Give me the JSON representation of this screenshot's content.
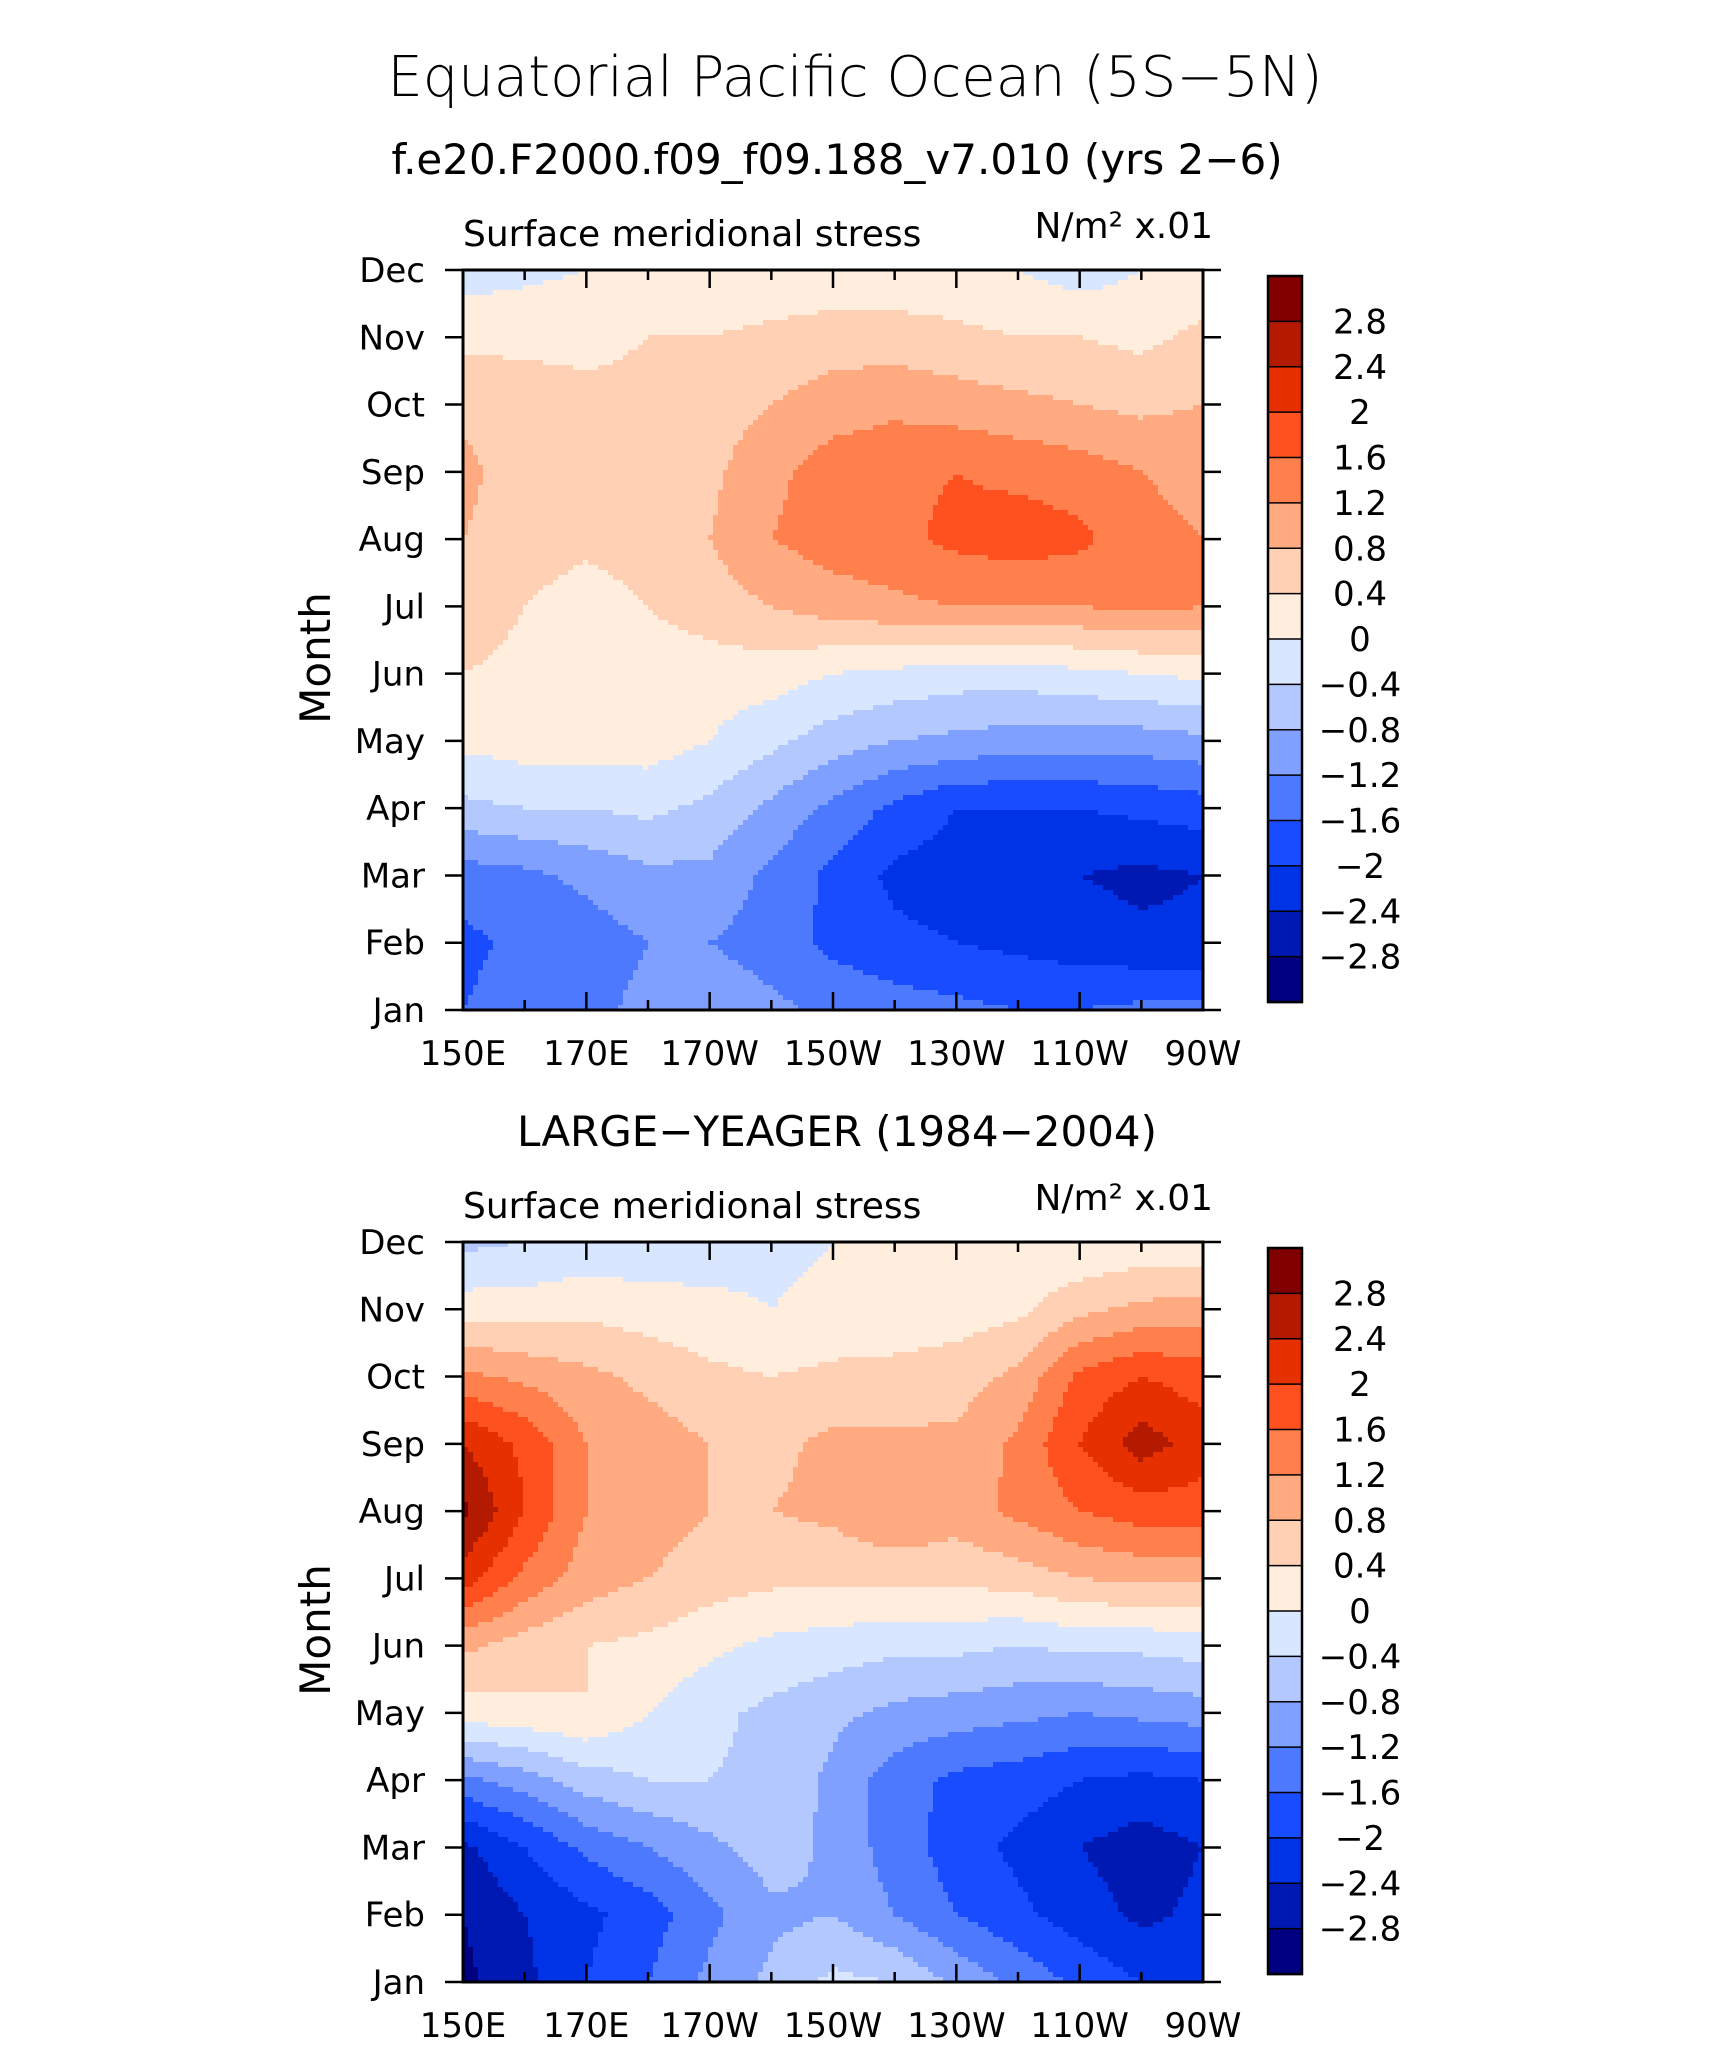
{
  "title": "Equatorial Pacific Ocean (5S−5N)",
  "colorbar": {
    "colors": [
      "#000080",
      "#0019b3",
      "#0033e6",
      "#1a4cff",
      "#4d79ff",
      "#80a0ff",
      "#b3c8ff",
      "#d9e6ff",
      "#ffeede",
      "#ffd0b3",
      "#ffaa80",
      "#ff7f4d",
      "#ff5020",
      "#e63000",
      "#b31a00",
      "#800000"
    ],
    "labels": [
      "2.8",
      "2.4",
      "2",
      "1.6",
      "1.2",
      "0.8",
      "0.4",
      "0",
      "−0.4",
      "−0.8",
      "−1.2",
      "−1.6",
      "−2",
      "−2.4",
      "−2.8"
    ]
  },
  "chart_data": [
    {
      "type": "heatmap",
      "title": "f.e20.F2000.f09_f09.188_v7.010 (yrs 2−6)",
      "left_string": "Surface meridional stress",
      "right_string": "N/m² x.01",
      "ylabel": "Month",
      "x_ticks": [
        "150E",
        "170E",
        "170W",
        "150W",
        "130W",
        "110W",
        "90W"
      ],
      "x_values": [
        150,
        160,
        170,
        180,
        190,
        200,
        210,
        220,
        230,
        240,
        250,
        260,
        270
      ],
      "y_ticks": [
        "Jan",
        "Feb",
        "Mar",
        "Apr",
        "May",
        "Jun",
        "Jul",
        "Aug",
        "Sep",
        "Oct",
        "Nov",
        "Dec"
      ],
      "levels": [
        -2.8,
        -2.4,
        -2.0,
        -1.6,
        -1.2,
        -0.8,
        -0.4,
        0,
        0.4,
        0.8,
        1.2,
        1.6,
        2.0,
        2.4,
        2.8
      ],
      "z": [
        [
          -1.6,
          -1.4,
          -1.3,
          -1.1,
          -0.9,
          -1.1,
          -1.3,
          -1.4,
          -1.5,
          -1.6,
          -1.6,
          -1.5,
          -1.5
        ],
        [
          -1.7,
          -1.5,
          -1.4,
          -1.2,
          -1.2,
          -1.4,
          -1.7,
          -1.9,
          -2.0,
          -2.1,
          -2.2,
          -2.3,
          -2.3
        ],
        [
          -1.4,
          -1.3,
          -1.1,
          -0.9,
          -0.9,
          -1.3,
          -1.7,
          -2.1,
          -2.2,
          -2.3,
          -2.4,
          -2.5,
          -2.4
        ],
        [
          -0.5,
          -0.4,
          -0.4,
          -0.3,
          -0.5,
          -0.9,
          -1.3,
          -1.7,
          -2.0,
          -2.0,
          -2.0,
          -1.9,
          -1.8
        ],
        [
          0.1,
          0.2,
          0.2,
          0.2,
          0.0,
          -0.3,
          -0.6,
          -0.8,
          -0.9,
          -1.0,
          -1.0,
          -1.0,
          -0.9
        ],
        [
          0.4,
          0.3,
          0.3,
          0.2,
          0.2,
          0.2,
          0.0,
          -0.1,
          -0.2,
          -0.2,
          -0.1,
          0.0,
          0.1
        ],
        [
          0.6,
          0.4,
          0.2,
          0.4,
          0.6,
          0.8,
          1.0,
          1.1,
          1.2,
          1.2,
          1.2,
          1.3,
          1.2
        ],
        [
          0.8,
          0.6,
          0.5,
          0.6,
          0.8,
          1.2,
          1.4,
          1.5,
          1.7,
          1.8,
          1.7,
          1.3,
          1.2
        ],
        [
          0.9,
          0.6,
          0.5,
          0.5,
          0.7,
          1.1,
          1.4,
          1.5,
          1.6,
          1.5,
          1.4,
          1.2,
          1.1
        ],
        [
          0.7,
          0.6,
          0.5,
          0.5,
          0.6,
          0.8,
          1.0,
          1.1,
          1.0,
          0.9,
          0.8,
          0.7,
          0.8
        ],
        [
          0.3,
          0.3,
          0.3,
          0.4,
          0.4,
          0.5,
          0.6,
          0.6,
          0.5,
          0.4,
          0.4,
          0.3,
          0.5
        ],
        [
          -0.2,
          -0.1,
          0.0,
          0.1,
          0.1,
          0.1,
          0.1,
          0.1,
          0.1,
          0.0,
          -0.2,
          0.0,
          0.1
        ]
      ]
    },
    {
      "type": "heatmap",
      "title": "LARGE−YEAGER (1984−2004)",
      "left_string": "Surface meridional stress",
      "right_string": "N/m² x.01",
      "ylabel": "Month",
      "x_ticks": [
        "150E",
        "170E",
        "170W",
        "150W",
        "130W",
        "110W",
        "90W"
      ],
      "x_values": [
        150,
        160,
        170,
        180,
        190,
        200,
        210,
        220,
        230,
        240,
        250,
        260,
        270
      ],
      "y_ticks": [
        "Jan",
        "Feb",
        "Mar",
        "Apr",
        "May",
        "Jun",
        "Jul",
        "Aug",
        "Sep",
        "Oct",
        "Nov",
        "Dec"
      ],
      "levels": [
        -2.8,
        -2.4,
        -2.0,
        -1.6,
        -1.2,
        -0.8,
        -0.4,
        0,
        0.4,
        0.8,
        1.2,
        1.6,
        2.0,
        2.4,
        2.8
      ],
      "z": [
        [
          -2.9,
          -2.5,
          -2.0,
          -1.6,
          -1.1,
          -0.7,
          -0.3,
          -0.4,
          -0.9,
          -1.3,
          -1.7,
          -2.0,
          -2.2
        ],
        [
          -2.8,
          -2.4,
          -2.1,
          -1.8,
          -1.3,
          -0.9,
          -0.8,
          -1.2,
          -1.6,
          -1.9,
          -2.2,
          -2.5,
          -2.3
        ],
        [
          -2.5,
          -2.0,
          -1.5,
          -1.2,
          -0.9,
          -0.6,
          -0.9,
          -1.4,
          -1.8,
          -2.1,
          -2.4,
          -2.6,
          -2.4
        ],
        [
          -1.3,
          -1.0,
          -0.6,
          -0.4,
          -0.4,
          -0.5,
          -0.9,
          -1.4,
          -1.7,
          -1.8,
          -2.0,
          -2.1,
          -2.0
        ],
        [
          0.2,
          0.3,
          0.4,
          0.0,
          -0.3,
          -0.5,
          -0.7,
          -0.9,
          -1.0,
          -1.1,
          -1.2,
          -1.1,
          -1.0
        ],
        [
          0.9,
          0.6,
          0.4,
          0.3,
          0.1,
          -0.1,
          -0.2,
          -0.3,
          -0.3,
          -0.4,
          -0.3,
          -0.3,
          -0.2
        ],
        [
          2.2,
          1.5,
          1.0,
          0.8,
          0.6,
          0.5,
          0.5,
          0.5,
          0.5,
          0.6,
          0.8,
          0.9,
          0.9
        ],
        [
          2.9,
          2.0,
          1.2,
          1.0,
          0.8,
          0.8,
          0.9,
          1.2,
          1.0,
          1.3,
          1.6,
          1.8,
          1.8
        ],
        [
          2.4,
          1.9,
          1.2,
          1.0,
          0.8,
          0.7,
          0.9,
          0.9,
          0.9,
          1.3,
          2.0,
          2.6,
          2.2
        ],
        [
          1.3,
          1.1,
          0.9,
          0.7,
          0.5,
          0.4,
          0.5,
          0.5,
          0.6,
          0.9,
          1.7,
          2.0,
          1.8
        ],
        [
          0.2,
          0.2,
          0.3,
          0.2,
          0.1,
          0.0,
          0.1,
          0.2,
          0.2,
          0.3,
          0.7,
          0.9,
          1.0
        ],
        [
          -0.5,
          -0.4,
          -0.3,
          -0.3,
          -0.2,
          -0.1,
          0.0,
          0.1,
          0.1,
          0.1,
          0.0,
          0.1,
          0.1
        ]
      ]
    }
  ]
}
